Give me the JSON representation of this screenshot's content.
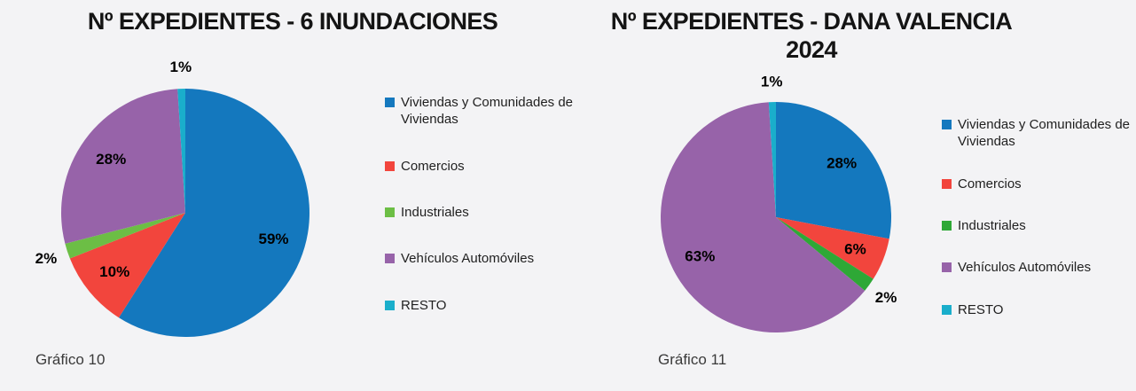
{
  "page": {
    "background": "#F3F3F5"
  },
  "charts": [
    {
      "title_display": "Nº EXPEDIENTES - 6 INUNDACIONES",
      "caption": "Gráfico 10",
      "chart_data": {
        "type": "pie",
        "title": "Nº EXPEDIENTES - 6 INUNDACIONES",
        "categories": [
          "Viviendas y Comunidades de Viviendas",
          "Comercios",
          "Industriales",
          "Vehículos Automóviles",
          "RESTO"
        ],
        "values": [
          59,
          10,
          2,
          28,
          1
        ],
        "labels": [
          "59%",
          "10%",
          "2%",
          "28%",
          "1%"
        ],
        "unit": "%",
        "colors": [
          "#1478BE",
          "#F2453D",
          "#6CBE45",
          "#9763A9",
          "#1AAECB"
        ],
        "start_angle_deg": 0,
        "direction": "clockwise",
        "legend_position": "right"
      }
    },
    {
      "title_display": "Nº EXPEDIENTES - DANA VALENCIA\n2024",
      "caption": "Gráfico 11",
      "chart_data": {
        "type": "pie",
        "title": "Nº EXPEDIENTES - DANA VALENCIA 2024",
        "categories": [
          "Viviendas y Comunidades de Viviendas",
          "Comercios",
          "Industriales",
          "Vehículos Automóviles",
          "RESTO"
        ],
        "values": [
          28,
          6,
          2,
          63,
          1
        ],
        "labels": [
          "28%",
          "6%",
          "2%",
          "63%",
          "1%"
        ],
        "unit": "%",
        "colors": [
          "#1478BE",
          "#F2453D",
          "#2EA836",
          "#9763A9",
          "#1AAECB"
        ],
        "start_angle_deg": 0,
        "direction": "clockwise",
        "legend_position": "right"
      }
    }
  ]
}
